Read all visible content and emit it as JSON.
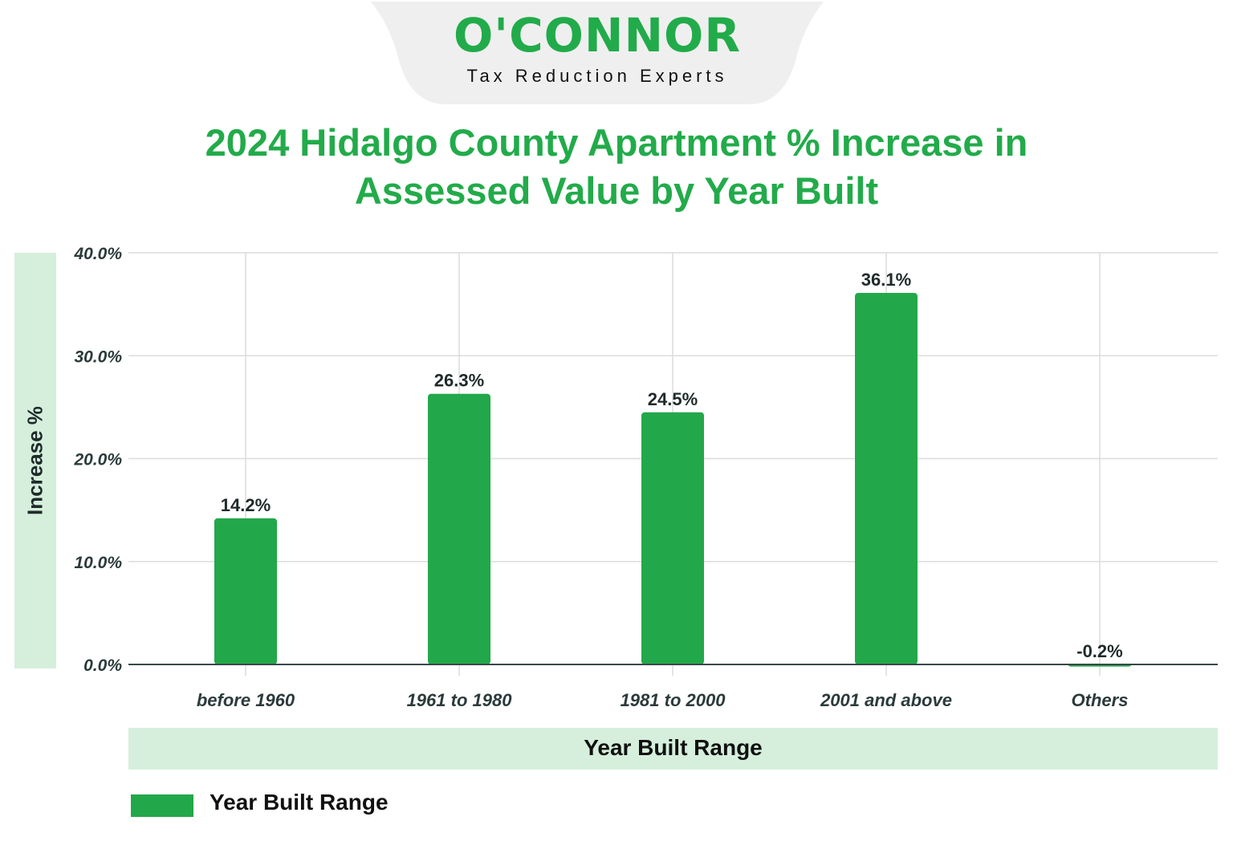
{
  "logo": {
    "name": "O'CONNOR",
    "tagline": "Tax Reduction Experts"
  },
  "colors": {
    "brand_green": "#22ab4a",
    "bar": "#22a84a",
    "band": "#d5efdc"
  },
  "chart_data": {
    "type": "bar",
    "title_line1": "2024 Hidalgo County Apartment % Increase in",
    "title_line2": "Assessed Value by Year Built",
    "xlabel": "Year Built Range",
    "ylabel": "Increase %",
    "categories": [
      "before 1960",
      "1961 to 1980",
      "1981 to 2000",
      "2001 and above",
      "Others"
    ],
    "series": [
      {
        "name": "Year Built Range",
        "values": [
          14.2,
          26.3,
          24.5,
          36.1,
          -0.2
        ]
      }
    ],
    "data_labels": [
      "14.2%",
      "26.3%",
      "24.5%",
      "36.1%",
      "-0.2%"
    ],
    "yticks": [
      "0.0%",
      "10.0%",
      "20.0%",
      "30.0%",
      "40.0%"
    ],
    "ylim": [
      0,
      40
    ],
    "grid": true,
    "legend": "bottom-left"
  }
}
